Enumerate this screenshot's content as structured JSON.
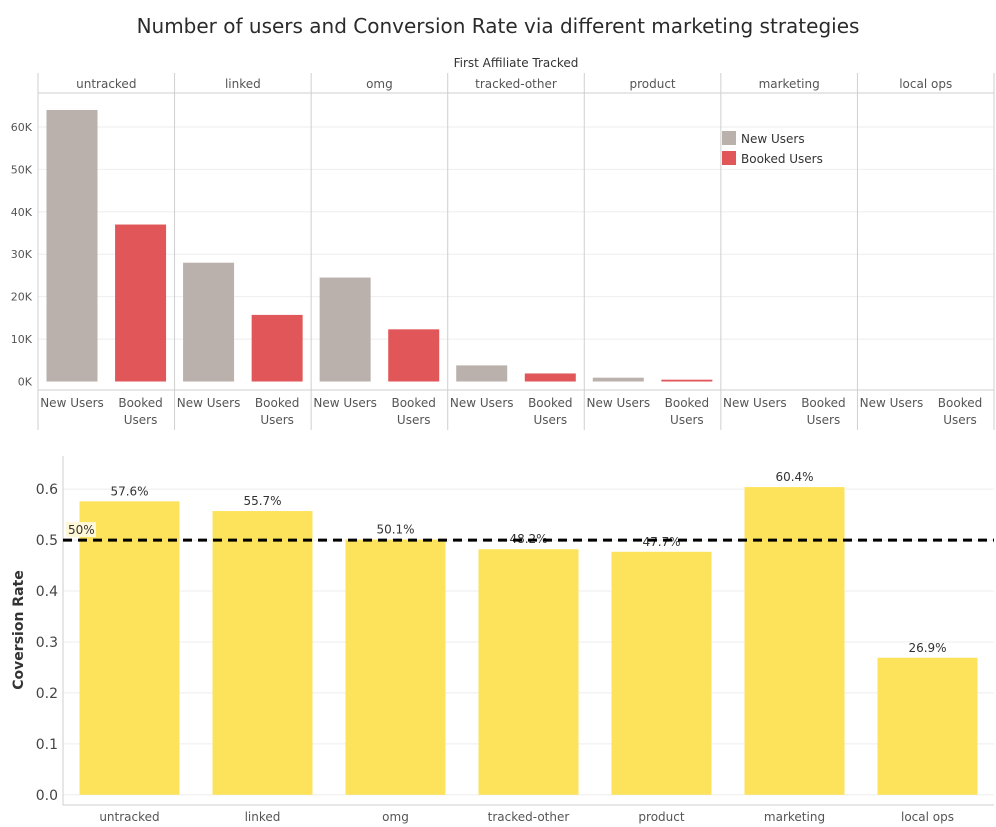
{
  "title": "Number of users and Conversion Rate via different marketing strategies",
  "colors": {
    "new_users": "#bab0ac",
    "booked_users": "#e15759",
    "conversion": "#fde35c",
    "refline": "#000000",
    "grid": "#eeeeee",
    "border": "#cfcfcf"
  },
  "chart_data": [
    {
      "type": "bar",
      "header": "First Affiliate Tracked",
      "categories": [
        "untracked",
        "linked",
        "omg",
        "tracked-other",
        "product",
        "marketing",
        "local ops"
      ],
      "bar_labels": [
        "New Users",
        "Booked Users"
      ],
      "series": [
        {
          "name": "New Users",
          "values": [
            64000,
            28000,
            24500,
            3800,
            900,
            0,
            0
          ]
        },
        {
          "name": "Booked Users",
          "values": [
            37000,
            15700,
            12300,
            1900,
            430,
            0,
            0
          ]
        }
      ],
      "yticks": [
        "0K",
        "10K",
        "20K",
        "30K",
        "40K",
        "50K",
        "60K"
      ],
      "ylim": [
        -2000,
        68000
      ],
      "legend": "top-right",
      "grid": true
    },
    {
      "type": "bar",
      "categories": [
        "untracked",
        "linked",
        "omg",
        "tracked-other",
        "product",
        "marketing",
        "local ops"
      ],
      "values": [
        0.576,
        0.557,
        0.501,
        0.482,
        0.477,
        0.604,
        0.269
      ],
      "data_labels": [
        "57.6%",
        "55.7%",
        "50.1%",
        "48.2%",
        "47.7%",
        "60.4%",
        "26.9%"
      ],
      "ylabel": "Coversion Rate",
      "yticks": [
        "0.0",
        "0.1",
        "0.2",
        "0.3",
        "0.4",
        "0.5",
        "0.6"
      ],
      "ylim": [
        -0.02,
        0.665
      ],
      "reference_line": {
        "value": 0.5,
        "label": "50%"
      },
      "grid": true
    }
  ]
}
